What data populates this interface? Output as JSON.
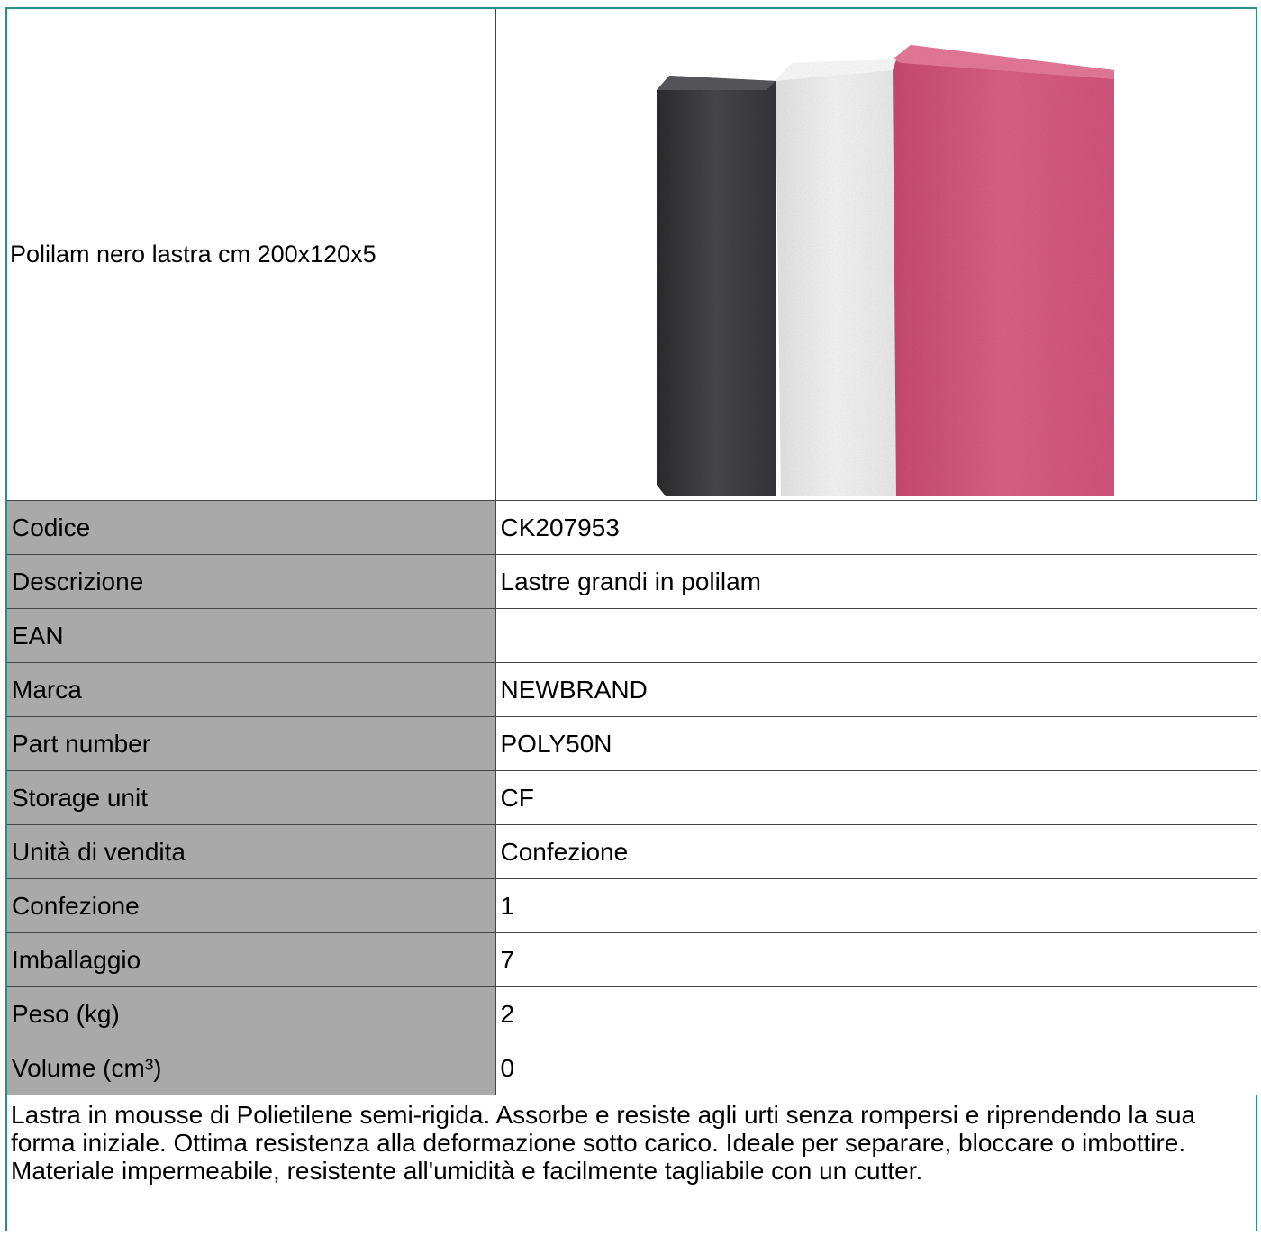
{
  "product": {
    "title": "Polilam nero  lastra cm 200x120x5",
    "image_icon": "foam-sheets-image",
    "image_colors": {
      "black": "#3a3a3c",
      "white": "#f2f2f2",
      "pink": "#d9577f"
    }
  },
  "specs": [
    {
      "label": "Codice",
      "value": "CK207953"
    },
    {
      "label": "Descrizione",
      "value": "Lastre grandi in polilam"
    },
    {
      "label": "EAN",
      "value": ""
    },
    {
      "label": "Marca",
      "value": "NEWBRAND"
    },
    {
      "label": "Part number",
      "value": "POLY50N"
    },
    {
      "label": "Storage unit",
      "value": "CF"
    },
    {
      "label": "Unità di vendita",
      "value": "Confezione"
    },
    {
      "label": "Confezione",
      "value": "1"
    },
    {
      "label": "Imballaggio",
      "value": "7"
    },
    {
      "label": "Peso (kg)",
      "value": "2"
    },
    {
      "label": "Volume (cm³)",
      "value": "0"
    }
  ],
  "description": "Lastra in mousse di Polietilene semi-rigida. Assorbe e resiste agli urti senza rompersi e riprendendo la sua forma iniziale. Ottima resistenza alla deformazione sotto carico. Ideale per separare, bloccare o imbottire. Materiale impermeabile, resistente all'umidità e facilmente tagliabile con un cutter.",
  "colors": {
    "frame_border": "#2e8b8b",
    "label_background": "#a9a9a9",
    "grid_line": "#444444"
  }
}
